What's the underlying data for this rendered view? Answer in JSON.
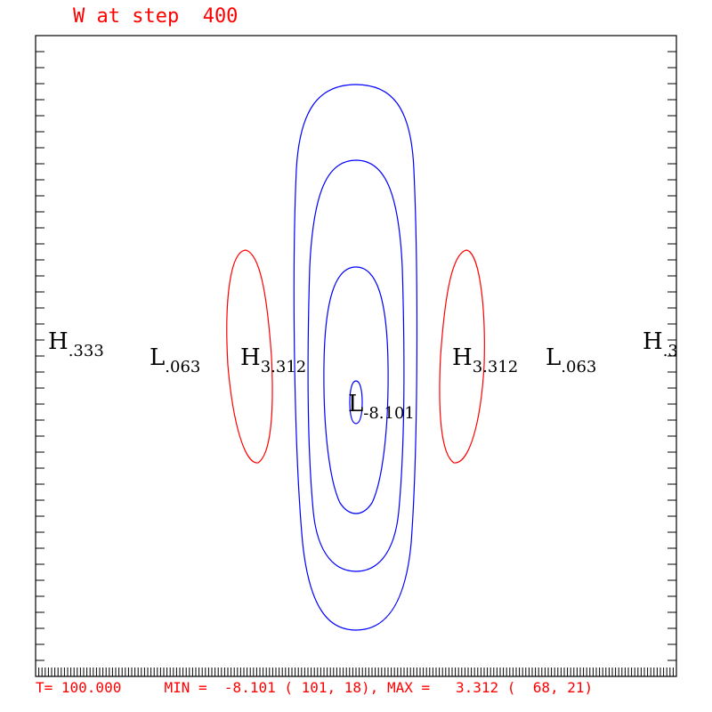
{
  "header": {
    "title": "W at step  400"
  },
  "footer": {
    "status": "T= 100.000     MIN =  -8.101 ( 101, 18), MAX =   3.312 (  68, 21)"
  },
  "colors": {
    "positive_contour": "#ff0000",
    "negative_contour": "#0000ff",
    "frame": "#000000"
  },
  "chart_data": {
    "type": "contour",
    "title": "W at step  400",
    "time": "100.000",
    "min": {
      "value": -8.101,
      "i": 101,
      "j": 18
    },
    "max": {
      "value": 3.312,
      "i": 68,
      "j": 21
    },
    "extrema_labels": [
      {
        "kind": "H",
        "value": ".333"
      },
      {
        "kind": "L",
        "value": ".063"
      },
      {
        "kind": "H",
        "value": "3.312"
      },
      {
        "kind": "L",
        "value": "-8.101"
      },
      {
        "kind": "H",
        "value": "3.312"
      },
      {
        "kind": "L",
        "value": ".063"
      },
      {
        "kind": "H",
        "value": ".3"
      }
    ],
    "contours": {
      "negative_levels": 4,
      "positive_levels": 2
    }
  }
}
